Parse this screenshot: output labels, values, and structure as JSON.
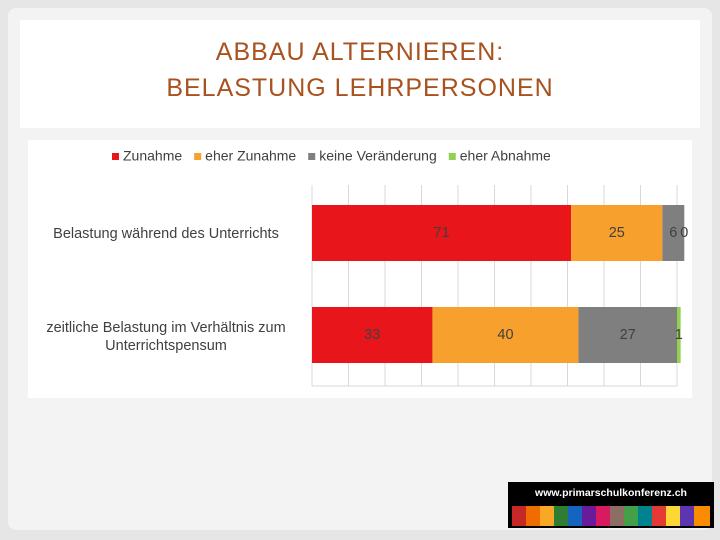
{
  "chart_data": {
    "type": "stacked_bar_horizontal",
    "title_lines": [
      "ABBAU ALTERNIEREN:",
      "BELASTUNG LEHRPERSONEN"
    ],
    "categories": [
      "Belastung während des Unterrichts",
      "zeitliche Belastung im Verhältnis zum Unterrichtspensum"
    ],
    "series": [
      {
        "name": "Zunahme",
        "color": "#e8151b",
        "values": [
          71,
          33
        ]
      },
      {
        "name": "eher Zunahme",
        "color": "#f7a02e",
        "values": [
          25,
          40
        ]
      },
      {
        "name": "keine Veränderung",
        "color": "#7f7f7f",
        "values": [
          6,
          27
        ]
      },
      {
        "name": "eher Abnahme",
        "color": "#92d050",
        "values": [
          0,
          1
        ]
      }
    ],
    "xlim": [
      0,
      100
    ],
    "xticks": [
      0,
      10,
      20,
      30,
      40,
      50,
      60,
      70,
      80,
      90,
      100
    ],
    "grid": true,
    "legend": "top"
  },
  "footer": {
    "logo_text": "www.primarschulkonferenz.ch"
  }
}
